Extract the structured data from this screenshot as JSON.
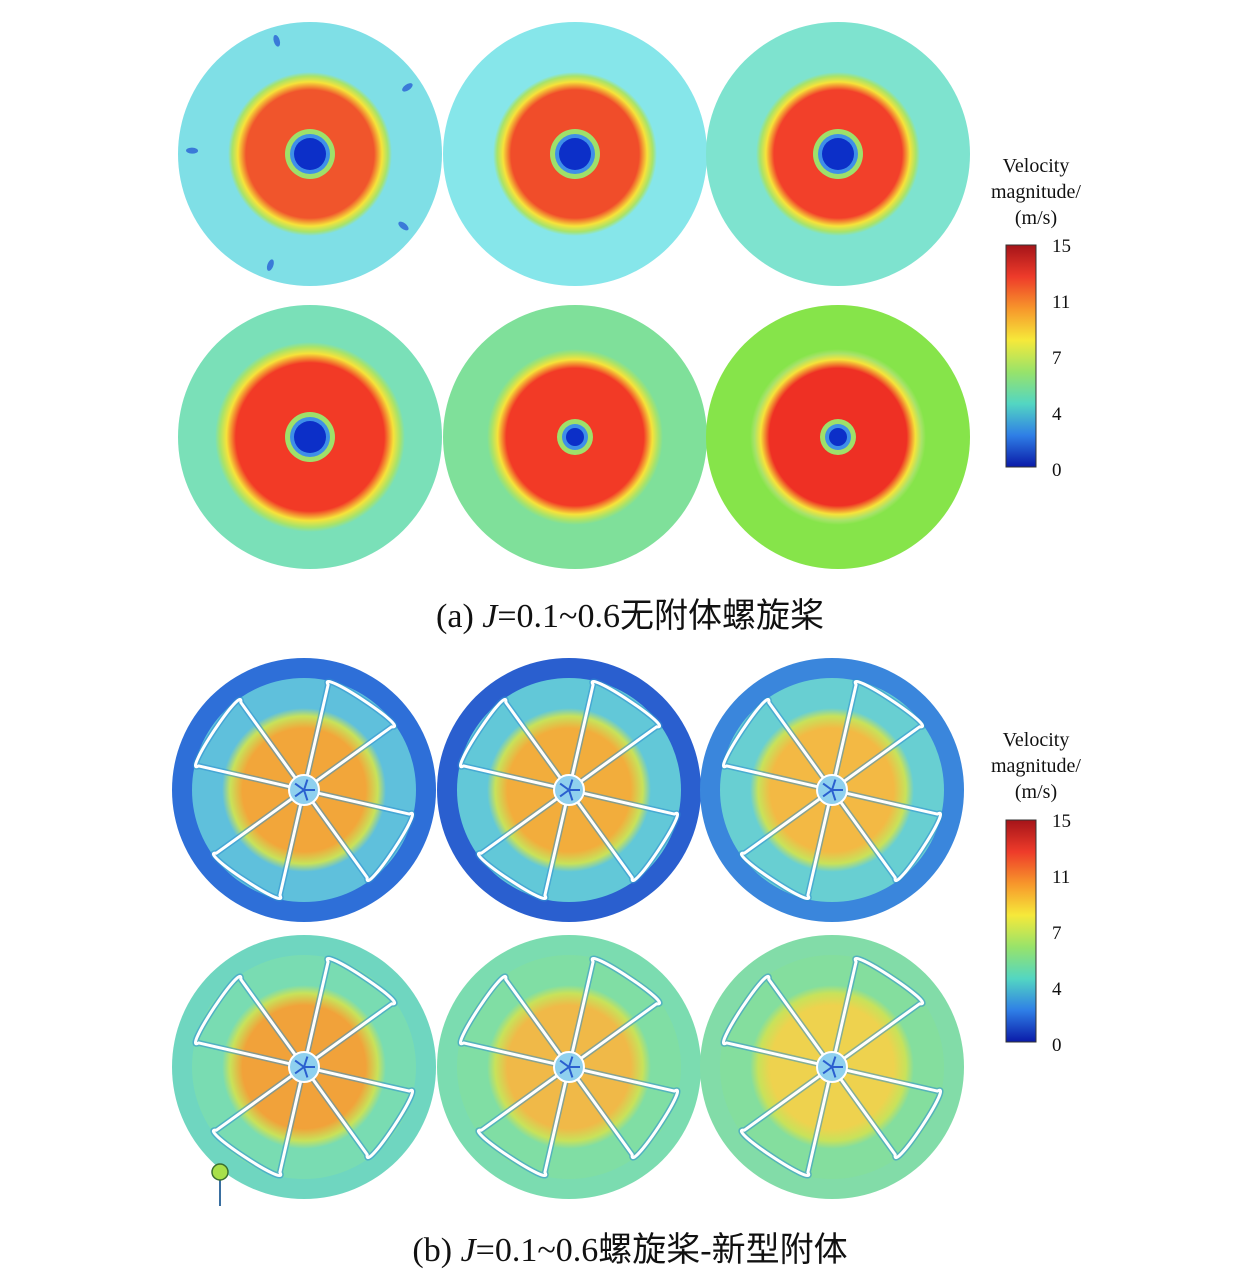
{
  "colormap": [
    "#0a1aa8",
    "#2f7fe6",
    "#53d6c2",
    "#98e36a",
    "#f6e93a",
    "#f7962b",
    "#ee3b2a",
    "#a51419"
  ],
  "panels": {
    "a": {
      "caption_prefix": "(a) ",
      "caption_var": "J",
      "caption_rest": "=0.1~0.6无附体螺旋桨",
      "legend": {
        "title_lines": [
          "Velocity",
          "magnitude/",
          "(m/s)"
        ],
        "ticks": [
          "15",
          "11",
          "7",
          "4",
          "0"
        ]
      },
      "cases": [
        {
          "bg": "#7fdfe6",
          "wake": "#f0552c"
        },
        {
          "bg": "#86e6ea",
          "wake": "#f04d2a"
        },
        {
          "bg": "#7ee3cf",
          "wake": "#f2402a"
        },
        {
          "bg": "#7ae0b8",
          "wake": "#f23a26"
        },
        {
          "bg": "#7fe09a",
          "wake": "#f23a26"
        },
        {
          "bg": "#86e44a",
          "wake": "#ee3024"
        }
      ]
    },
    "b": {
      "caption_prefix": "(b) ",
      "caption_var": "J",
      "caption_rest": "=0.1~0.6螺旋桨-新型附体",
      "legend": {
        "title_lines": [
          "Velocity",
          "magnitude/",
          "(m/s)"
        ],
        "ticks": [
          "15",
          "11",
          "7",
          "4",
          "0"
        ]
      },
      "cases": [
        {
          "bg": "#5fc0dc",
          "ring": "#2e6fd8",
          "core": "#f2a63a"
        },
        {
          "bg": "#62c8d8",
          "ring": "#2a5fcf",
          "core": "#f2ad3c"
        },
        {
          "bg": "#68cfd2",
          "ring": "#3a86dc",
          "core": "#f3b944"
        },
        {
          "bg": "#79dcb2",
          "ring": "#6fd6c0",
          "core": "#f1a23a"
        },
        {
          "bg": "#80dea4",
          "ring": "#7bdcb0",
          "core": "#f0b948"
        },
        {
          "bg": "#84de9e",
          "ring": "#82dca8",
          "core": "#eed24e"
        }
      ]
    }
  }
}
